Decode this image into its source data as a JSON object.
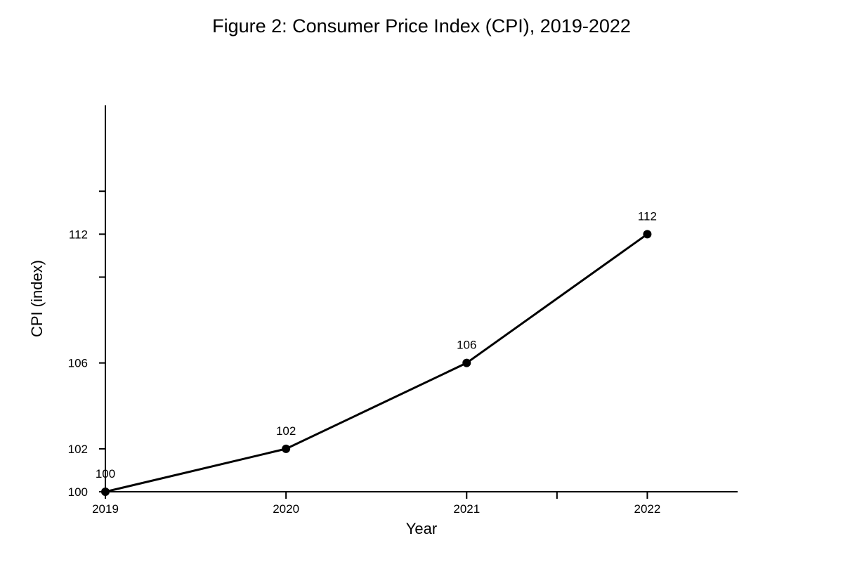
{
  "chart_data": {
    "type": "line",
    "title": "Figure 2: Consumer Price Index (CPI), 2019-2022",
    "xlabel": "Year",
    "ylabel": "CPI (index)",
    "x": [
      2019,
      2020,
      2021,
      2022
    ],
    "series": [
      {
        "values": [
          100,
          102,
          106,
          112
        ]
      }
    ],
    "data_labels": [
      "100",
      "102",
      "106",
      "112"
    ],
    "x_ticks": [
      2019,
      2020,
      2021,
      2022
    ],
    "x_ticks_unlabeled": [
      2021.5
    ],
    "x_tick_labels": [
      "2019",
      "2020",
      "2021",
      "2022"
    ],
    "xlim": [
      2019,
      2022.5
    ],
    "y_ticks": [
      100,
      102,
      106,
      112
    ],
    "y_ticks_unlabeled": [
      110,
      114
    ],
    "y_tick_labels": [
      "100",
      "102",
      "106",
      "112"
    ],
    "ylim": [
      100,
      118
    ],
    "grid": false,
    "legend": "none",
    "colors": {
      "line": "#000000",
      "marker": "#000000",
      "axis": "#000000"
    }
  }
}
